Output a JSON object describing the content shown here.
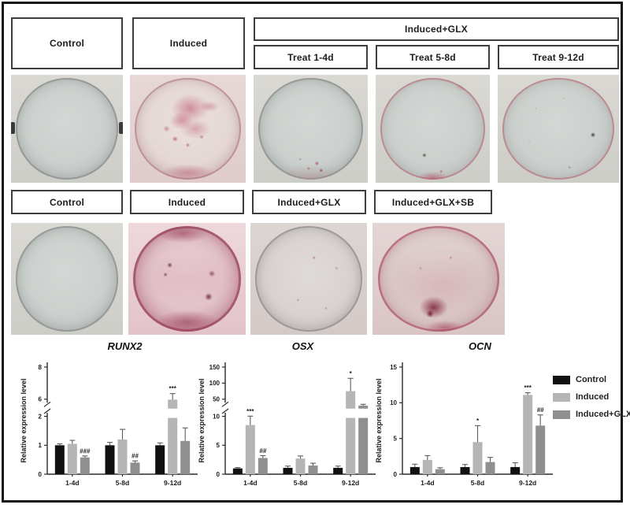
{
  "theme": {
    "frame_color": "#141414",
    "box_border_color": "#3d3d3d",
    "axis_color": "#2b2b2b",
    "stain_color": "#b2485f",
    "control_color": "#111111",
    "induced_color": "#b5b5b5",
    "glx_color": "#8f8f8f"
  },
  "panel_a": {
    "col_control": "Control",
    "col_induced": "Induced",
    "group_glx": "Induced+GLX",
    "sub_cols": [
      "Treat 1-4d",
      "Treat 5-8d",
      "Treat 9-12d"
    ],
    "dishes": [
      {
        "variant": "gray-clips"
      },
      {
        "variant": "stain-center"
      },
      {
        "variant": "spots-a"
      },
      {
        "variant": "spots-b"
      },
      {
        "variant": "spots-c"
      }
    ]
  },
  "panel_b": {
    "cols": [
      "Control",
      "Induced",
      "Induced+GLX",
      "Induced+GLX+SB"
    ],
    "dishes": [
      {
        "variant": "gray"
      },
      {
        "variant": "heavy"
      },
      {
        "variant": "pink-light"
      },
      {
        "variant": "rim-blob"
      }
    ]
  },
  "legend": {
    "items": [
      {
        "label": "Control",
        "color": "#111111"
      },
      {
        "label": "Induced",
        "color": "#b5b5b5"
      },
      {
        "label": "Induced+GLX",
        "color": "#8f8f8f"
      }
    ]
  },
  "chart_data": [
    {
      "type": "bar",
      "title": "RUNX2",
      "ylabel": "Relative expression level",
      "categories": [
        "1-4d",
        "5-8d",
        "9-12d"
      ],
      "yticks": [
        0,
        1,
        2,
        6,
        8
      ],
      "axis_break": {
        "low": 2,
        "high": 6
      },
      "series": [
        {
          "name": "Control",
          "color": "#111111",
          "values": [
            1.0,
            1.0,
            1.0
          ],
          "errors": [
            0.05,
            0.1,
            0.08
          ],
          "sig": [
            "",
            "",
            ""
          ]
        },
        {
          "name": "Induced",
          "color": "#b5b5b5",
          "values": [
            1.05,
            1.2,
            5.9
          ],
          "errors": [
            0.12,
            0.35,
            0.45
          ],
          "sig": [
            "",
            "",
            "***"
          ]
        },
        {
          "name": "Induced+GLX",
          "color": "#8f8f8f",
          "values": [
            0.58,
            0.4,
            1.15
          ],
          "errors": [
            0.05,
            0.06,
            0.45
          ],
          "sig": [
            "###",
            "##",
            ""
          ]
        }
      ]
    },
    {
      "type": "bar",
      "title": "OSX",
      "ylabel": "Relative expression level",
      "categories": [
        "1-4d",
        "5-8d",
        "9-12d"
      ],
      "yticks": [
        0,
        5,
        10,
        50,
        100,
        150
      ],
      "axis_break": {
        "low": 10,
        "high": 50
      },
      "series": [
        {
          "name": "Control",
          "color": "#111111",
          "values": [
            1.0,
            1.1,
            1.1
          ],
          "errors": [
            0.15,
            0.3,
            0.3
          ],
          "sig": [
            "",
            "",
            ""
          ]
        },
        {
          "name": "Induced",
          "color": "#b5b5b5",
          "values": [
            8.5,
            2.7,
            75
          ],
          "errors": [
            2.0,
            0.45,
            40
          ],
          "sig": [
            "***",
            "",
            "*"
          ]
        },
        {
          "name": "Induced+GLX",
          "color": "#8f8f8f",
          "values": [
            2.8,
            1.5,
            35
          ],
          "errors": [
            0.4,
            0.4,
            3
          ],
          "sig": [
            "##",
            "",
            ""
          ]
        }
      ]
    },
    {
      "type": "bar",
      "title": "OCN",
      "ylabel": "Relative expression level",
      "categories": [
        "1-4d",
        "5-8d",
        "9-12d"
      ],
      "yticks": [
        0,
        5,
        10,
        15
      ],
      "axis_break": null,
      "series": [
        {
          "name": "Control",
          "color": "#111111",
          "values": [
            1.0,
            1.0,
            1.0
          ],
          "errors": [
            0.4,
            0.35,
            0.6
          ],
          "sig": [
            "",
            "",
            ""
          ]
        },
        {
          "name": "Induced",
          "color": "#b5b5b5",
          "values": [
            2.0,
            4.5,
            11.1
          ],
          "errors": [
            0.6,
            2.3,
            0.3
          ],
          "sig": [
            "",
            "*",
            "***"
          ]
        },
        {
          "name": "Induced+GLX",
          "color": "#8f8f8f",
          "values": [
            0.7,
            1.7,
            6.8
          ],
          "errors": [
            0.2,
            0.65,
            1.5
          ],
          "sig": [
            "",
            "",
            "##"
          ]
        }
      ]
    }
  ]
}
